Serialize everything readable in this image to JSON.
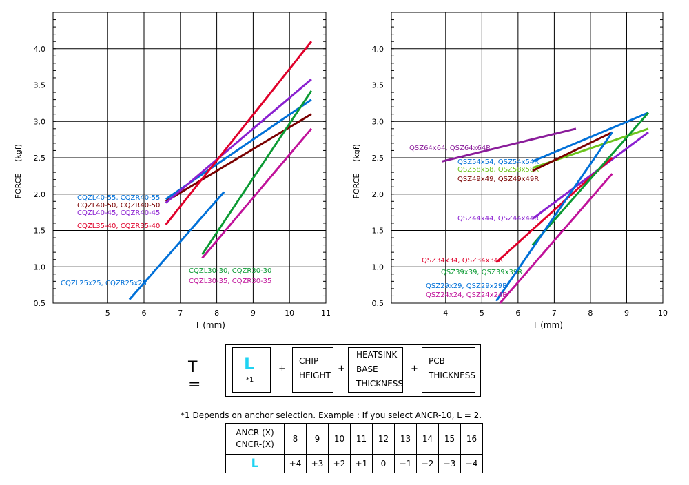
{
  "charts": [
    {
      "id": "left",
      "xlabel": "T (mm)",
      "ylabel_left": "FORCE",
      "ylabel_unit": "(kgf)",
      "xlim": [
        3.5,
        11
      ],
      "ylim": [
        0.5,
        4.5
      ],
      "x_ticks": [
        "5",
        "6",
        "7",
        "8",
        "9",
        "10",
        "11"
      ],
      "y_ticks": [
        "0.5",
        "1.0",
        "1.5",
        "2.0",
        "2.5",
        "3.0",
        "3.5",
        "4.0"
      ],
      "series": [
        {
          "name": "CQZL40-55, CQZR40-55",
          "color": "#0070d8",
          "x": [
            6.6,
            10.6
          ],
          "y": [
            1.93,
            3.3
          ]
        },
        {
          "name": "CQZL40-50, CQZR40-50",
          "color": "#7a0000",
          "x": [
            6.6,
            10.6
          ],
          "y": [
            1.9,
            3.1
          ]
        },
        {
          "name": "CQZL40-45, CQZR40-45",
          "color": "#8a20d0",
          "x": [
            6.6,
            10.6
          ],
          "y": [
            1.88,
            3.58
          ]
        },
        {
          "name": "CQZL35-40, CQZR35-40",
          "color": "#e0002a",
          "x": [
            6.6,
            10.6
          ],
          "y": [
            1.58,
            4.1
          ]
        },
        {
          "name": "CQZL30-30, CQZR30-30",
          "color": "#0b9a33",
          "x": [
            7.6,
            10.6
          ],
          "y": [
            1.17,
            3.42
          ]
        },
        {
          "name": "CQZL30-35, CQZR30-35",
          "color": "#c0129a",
          "x": [
            7.6,
            10.6
          ],
          "y": [
            1.12,
            2.9
          ]
        },
        {
          "name": "CQZL25x25, CQZR25x25",
          "color": "#0070d8",
          "x": [
            5.6,
            8.2
          ],
          "y": [
            0.55,
            2.03
          ]
        }
      ]
    },
    {
      "id": "right",
      "xlabel": "T (mm)",
      "ylabel_left": "FORCE",
      "ylabel_unit": "(kgf)",
      "xlim": [
        2.5,
        10
      ],
      "ylim": [
        0.5,
        4.5
      ],
      "x_ticks": [
        "4",
        "5",
        "6",
        "7",
        "8",
        "9",
        "10"
      ],
      "y_ticks": [
        "0.5",
        "1.0",
        "1.5",
        "2.0",
        "2.5",
        "3.0",
        "3.5",
        "4.0"
      ],
      "series": [
        {
          "name": "QSZ64x64, QSZ64x64R",
          "color": "#8a1c9a",
          "x": [
            3.9,
            7.6
          ],
          "y": [
            2.45,
            2.9
          ]
        },
        {
          "name": "QSZ54x54, QSZ54x54R",
          "color": "#0070d8",
          "x": [
            6.4,
            9.6
          ],
          "y": [
            2.45,
            3.12
          ]
        },
        {
          "name": "QSZ58x58, QSZ58x58R",
          "color": "#6cc41c",
          "x": [
            6.4,
            9.6
          ],
          "y": [
            2.36,
            2.9
          ]
        },
        {
          "name": "QSZ49x49, QSZ49x49R",
          "color": "#7a0000",
          "x": [
            6.4,
            8.6
          ],
          "y": [
            2.32,
            2.85
          ]
        },
        {
          "name": "QSZ44x44, QSZ44x44R",
          "color": "#8a20d0",
          "x": [
            6.4,
            9.6
          ],
          "y": [
            1.66,
            2.85
          ]
        },
        {
          "name": "QSZ34x34, QSZ34x34R",
          "color": "#e0002a",
          "x": [
            5.4,
            8.6
          ],
          "y": [
            1.06,
            2.5
          ]
        },
        {
          "name": "QSZ39x39, QSZ39x39R",
          "color": "#0b9a33",
          "x": [
            6.4,
            9.6
          ],
          "y": [
            1.3,
            3.12
          ]
        },
        {
          "name": "QSZ29x29, QSZ29x29R",
          "color": "#0070d8",
          "x": [
            5.4,
            8.6
          ],
          "y": [
            0.53,
            2.85
          ]
        },
        {
          "name": "QSZ24x24, QSZ24x24R",
          "color": "#c0129a",
          "x": [
            5.5,
            8.6
          ],
          "y": [
            0.5,
            2.28
          ]
        }
      ]
    }
  ],
  "formula": {
    "lhs": "T  =",
    "l_symbol": "L",
    "l_note": "*1",
    "plus": "+",
    "chip_height": [
      "CHIP",
      "HEIGHT"
    ],
    "heatsink": [
      "HEATSINK",
      "BASE",
      "THICKNESS"
    ],
    "pcb": [
      "PCB",
      "THICKNESS"
    ]
  },
  "footnote": "*1  Depends on anchor selection.  Example : If you select ANCR-10, L = 2.",
  "anchor_table": {
    "header": [
      "ANCR-(X)",
      "CNCR-(X)"
    ],
    "x_values": [
      "8",
      "9",
      "10",
      "11",
      "12",
      "13",
      "14",
      "15",
      "16"
    ],
    "row_label": "L",
    "l_values": [
      "+4",
      "+3",
      "+2",
      "+1",
      "0",
      "−1",
      "−2",
      "−3",
      "−4"
    ]
  }
}
